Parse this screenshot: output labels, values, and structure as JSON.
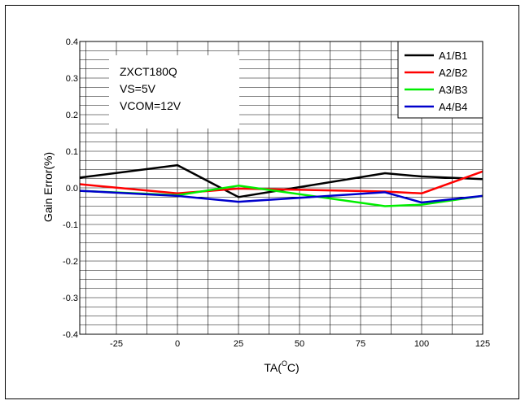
{
  "chart_data": {
    "type": "line",
    "xlabel_main": "TA(",
    "xlabel_sup": "O",
    "xlabel_end": "C)",
    "ylabel": "Gain Error(%)",
    "xlim": [
      -40,
      125
    ],
    "ylim": [
      -0.4,
      0.4
    ],
    "x_ticks": [
      -25,
      0,
      25,
      50,
      75,
      100,
      125
    ],
    "x_tick_labels": [
      "-25",
      "0",
      "25",
      "50",
      "75",
      "100",
      "125"
    ],
    "y_ticks": [
      0.4,
      0.3,
      0.2,
      0.1,
      0.0,
      -0.1,
      -0.2,
      -0.3,
      -0.4
    ],
    "y_tick_labels": [
      "0.4",
      "0.3",
      "0.2",
      "0.1",
      "0.0",
      "-0.1",
      "-0.2",
      "-0.3",
      "-0.4"
    ],
    "grid": true,
    "annotation_lines": [
      "ZXCT180Q",
      "VS=5V",
      "VCOM=12V"
    ],
    "legend_position": "top-right",
    "series": [
      {
        "name": "A1/B1",
        "color": "#000000",
        "x": [
          -40,
          0,
          25,
          85,
          100,
          125
        ],
        "y": [
          0.028,
          0.062,
          -0.025,
          0.04,
          0.031,
          0.024
        ]
      },
      {
        "name": "A2/B2",
        "color": "#ff0000",
        "x": [
          -40,
          0,
          25,
          85,
          100,
          125
        ],
        "y": [
          0.01,
          -0.015,
          -0.002,
          -0.01,
          -0.015,
          0.045
        ]
      },
      {
        "name": "A3/B3",
        "color": "#00ee00",
        "x": [
          -40,
          0,
          25,
          85,
          100,
          125
        ],
        "y": [
          -0.008,
          -0.02,
          0.006,
          -0.05,
          -0.046,
          -0.022
        ]
      },
      {
        "name": "A4/B4",
        "color": "#0000cc",
        "x": [
          -40,
          0,
          25,
          85,
          100,
          125
        ],
        "y": [
          -0.008,
          -0.022,
          -0.038,
          -0.012,
          -0.04,
          -0.022
        ]
      }
    ]
  }
}
